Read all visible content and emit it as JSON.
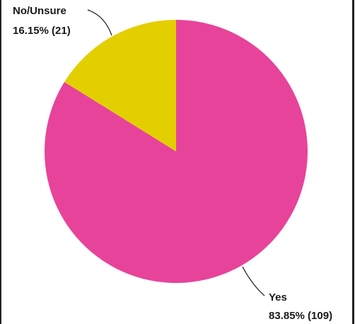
{
  "chart_data": {
    "type": "pie",
    "title": "",
    "slices": [
      {
        "label": "Yes",
        "percent_label": "83.85% (109)",
        "percent": 83.85,
        "count": 109,
        "color": "#e8439a"
      },
      {
        "label": "No/Unsure",
        "percent_label": "16.15% (21)",
        "percent": 16.15,
        "count": 21,
        "color": "#e3cf00"
      }
    ],
    "start_angle": "12 o'clock",
    "direction": "clockwise",
    "legend": "none"
  }
}
